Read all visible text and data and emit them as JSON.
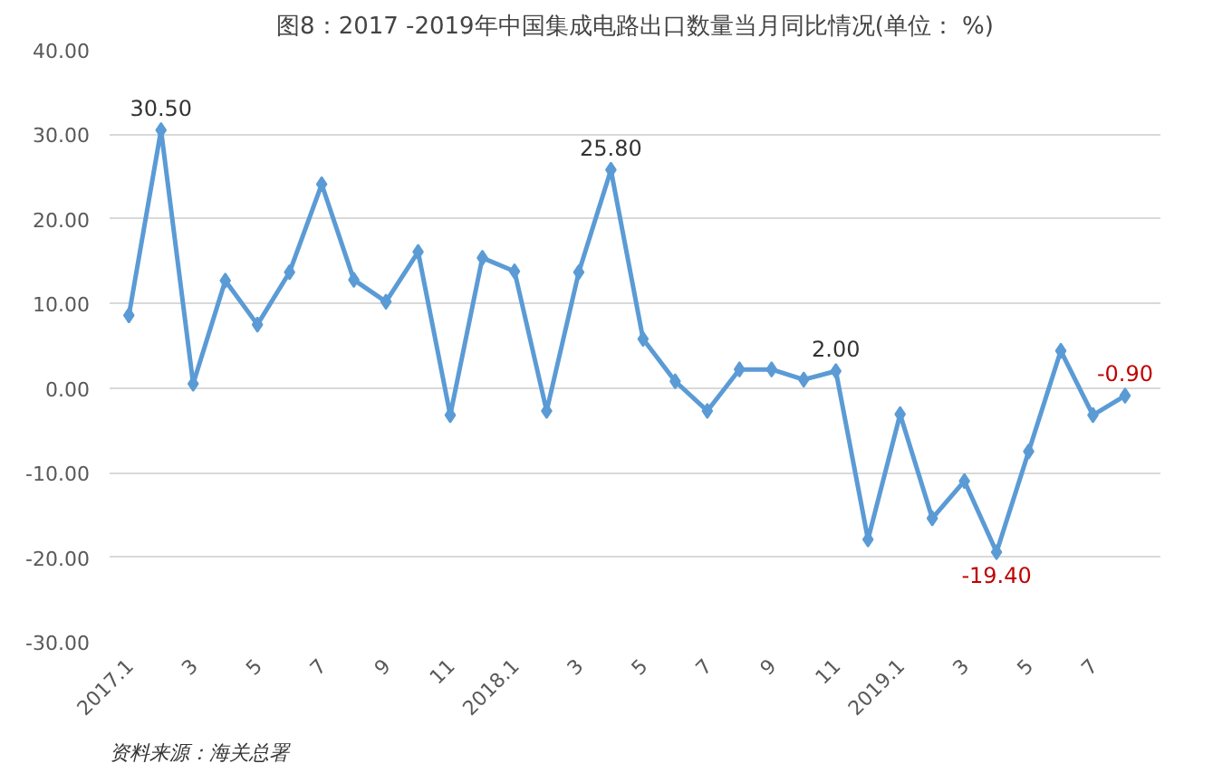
{
  "chart_data": {
    "type": "line",
    "title": "图8：2017 -2019年中国集成电路出口数量当月同比情况(单位： %)",
    "categories": [
      "2017.1",
      null,
      "3",
      null,
      "5",
      null,
      "7",
      null,
      "9",
      null,
      "11",
      null,
      "2018.1",
      null,
      "3",
      null,
      "5",
      null,
      "7",
      null,
      "9",
      null,
      "11",
      null,
      "2019.1",
      null,
      "3",
      null,
      "5",
      null,
      "7",
      null
    ],
    "series": [
      {
        "color": "#5b9bd5",
        "values": [
          8.6,
          30.5,
          0.5,
          12.7,
          7.5,
          13.7,
          24.1,
          12.8,
          10.2,
          16.1,
          -3.2,
          15.4,
          13.8,
          -2.7,
          13.7,
          25.8,
          5.8,
          0.8,
          -2.7,
          2.2,
          2.2,
          1.0,
          2.0,
          -17.9,
          -3.1,
          -15.4,
          -11.0,
          -19.4,
          -7.5,
          4.4,
          -3.2,
          -0.9
        ],
        "value_labels": [
          null,
          "30.50",
          null,
          null,
          null,
          null,
          null,
          null,
          null,
          null,
          null,
          null,
          null,
          null,
          null,
          "25.80",
          null,
          null,
          null,
          null,
          null,
          null,
          "2.00",
          null,
          null,
          null,
          null,
          "-19.40",
          null,
          null,
          null,
          "-0.90"
        ]
      }
    ],
    "ylim": [
      -30,
      40
    ],
    "yticks": [
      {
        "value": -30,
        "label": "-30.00"
      },
      {
        "value": -20,
        "label": "-20.00"
      },
      {
        "value": -10,
        "label": "-10.00"
      },
      {
        "value": 0,
        "label": "0.00"
      },
      {
        "value": 10,
        "label": "10.00"
      },
      {
        "value": 20,
        "label": "20.00"
      },
      {
        "value": 30,
        "label": "30.00"
      },
      {
        "value": 40,
        "label": "40.00"
      }
    ],
    "grid": "y",
    "marker": "diamond",
    "line_style": "solid",
    "annotations": [
      "资料来源：海关总署"
    ]
  }
}
